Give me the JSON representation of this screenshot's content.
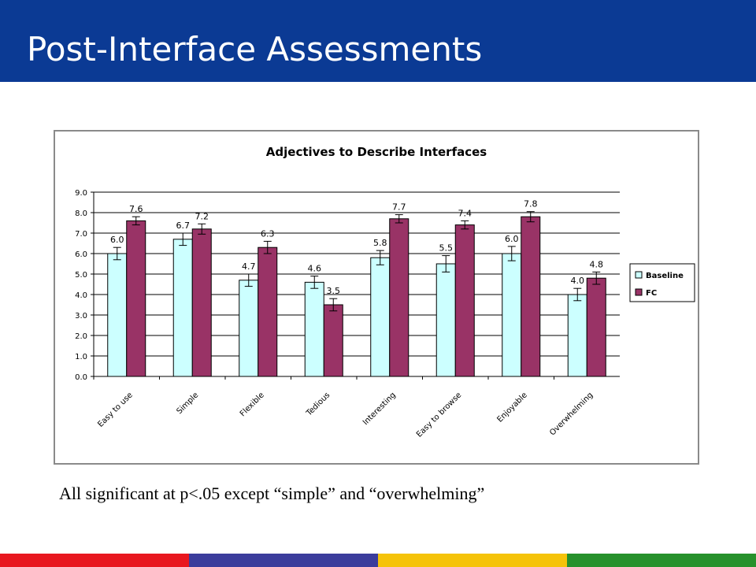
{
  "slide": {
    "title": "Post-Interface Assessments",
    "caption": "All significant at p<.05 except “simple” and “overwhelming”"
  },
  "colors": {
    "header": "#0b3a94",
    "baseline_fill": "#ccffff",
    "fc_fill": "#993366",
    "footer": [
      "#e8171f",
      "#3b3d9c",
      "#f5c30a",
      "#27912c"
    ]
  },
  "chart_data": {
    "type": "bar",
    "title": "Adjectives to Describe Interfaces",
    "xlabel": "",
    "ylabel": "",
    "categories": [
      "Easy to use",
      "Simple",
      "Flexible",
      "Tedious",
      "Interesting",
      "Easy to browse",
      "Enjoyable",
      "Overwhelming"
    ],
    "series": [
      {
        "name": "Baseline",
        "values": [
          6.0,
          6.7,
          4.7,
          4.6,
          5.8,
          5.5,
          6.0,
          4.0
        ],
        "labels": [
          "6.0",
          "6.7",
          "4.7",
          "4.6",
          "5.8",
          "5.5",
          "6.0",
          "4.0"
        ],
        "errors": [
          0.3,
          0.3,
          0.3,
          0.3,
          0.35,
          0.4,
          0.35,
          0.3
        ]
      },
      {
        "name": "FC",
        "values": [
          7.6,
          7.2,
          6.3,
          3.5,
          7.7,
          7.4,
          7.8,
          4.8
        ],
        "labels": [
          "7.6",
          "7.2",
          "6.3",
          "3.5",
          "7.7",
          "7.4",
          "7.8",
          "4.8"
        ],
        "errors": [
          0.2,
          0.25,
          0.3,
          0.3,
          0.2,
          0.2,
          0.25,
          0.3
        ]
      }
    ],
    "ylim": [
      0,
      9
    ],
    "yticks": [
      "0.0",
      "1.0",
      "2.0",
      "3.0",
      "4.0",
      "5.0",
      "6.0",
      "7.0",
      "8.0",
      "9.0"
    ],
    "grid": true,
    "legend": "right"
  }
}
